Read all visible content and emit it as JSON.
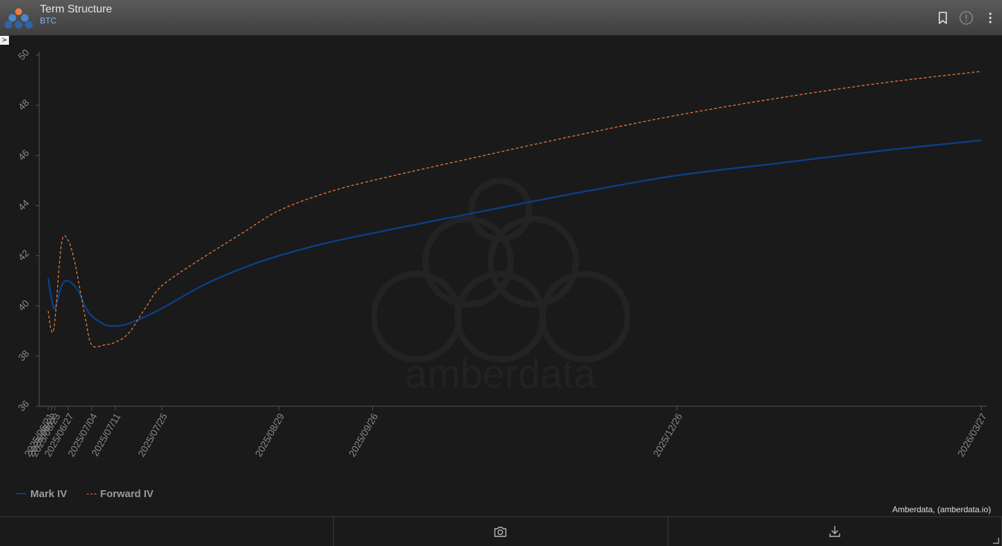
{
  "header": {
    "title": "Term Structure",
    "subtitle": "BTC",
    "icons": [
      "bookmark-icon",
      "info-icon",
      "more-vertical-icon"
    ]
  },
  "expander": {
    "label": ">"
  },
  "colors": {
    "mark_iv": "#0b3f8a",
    "forward_iv": "#f07a3a",
    "axis": "#555555",
    "tick_text": "#8a8a8a",
    "subtitle": "#7db3ff"
  },
  "legend": {
    "items": [
      {
        "label": "Mark IV",
        "style": "solid"
      },
      {
        "label": "Forward IV",
        "style": "dashed"
      }
    ]
  },
  "credit": "Amberdata, (amberdata.io)",
  "watermark_text": "amberdata",
  "footer": {
    "icons": [
      "",
      "camera-icon",
      "download-icon"
    ]
  },
  "chart_data": {
    "type": "line",
    "title": "",
    "xlabel": "",
    "ylabel": "",
    "ylim": [
      36,
      50
    ],
    "yticks": [
      36,
      38,
      40,
      42,
      44,
      46,
      48,
      50
    ],
    "x_type": "date",
    "xlim": [
      "2025/06/20",
      "2026/03/27"
    ],
    "x_ticks": [
      "2025/06/21",
      "2025/06/22",
      "2025/06/23",
      "2025/06/27",
      "2025/07/04",
      "2025/07/11",
      "2025/07/25",
      "2025/08/29",
      "2025/09/26",
      "2025/12/26",
      "2026/03/27"
    ],
    "x_tick_labels": [
      "2025/06/21",
      "2025/06/22",
      "2025/06/23",
      "2025/06/27",
      "2025/07/04",
      "2025/07/11",
      "2025/07/25",
      "2025/08/29",
      "2025/09/26",
      "2025/12/26",
      "2026/03/27"
    ],
    "grid": false,
    "legend_position": "bottom-left",
    "series": [
      {
        "name": "Mark IV",
        "style": "solid",
        "points": [
          [
            "2025/06/21",
            41.1
          ],
          [
            "2025/06/22",
            40.3
          ],
          [
            "2025/06/23",
            39.9
          ],
          [
            "2025/06/25",
            40.8
          ],
          [
            "2025/06/27",
            41.0
          ],
          [
            "2025/06/30",
            40.6
          ],
          [
            "2025/07/02",
            40.0
          ],
          [
            "2025/07/04",
            39.6
          ],
          [
            "2025/07/08",
            39.25
          ],
          [
            "2025/07/11",
            39.2
          ],
          [
            "2025/07/14",
            39.25
          ],
          [
            "2025/07/18",
            39.45
          ],
          [
            "2025/07/25",
            39.9
          ],
          [
            "2025/08/06",
            40.8
          ],
          [
            "2025/08/18",
            41.5
          ],
          [
            "2025/08/29",
            42.0
          ],
          [
            "2025/09/12",
            42.5
          ],
          [
            "2025/09/26",
            42.9
          ],
          [
            "2025/10/26",
            43.7
          ],
          [
            "2025/11/26",
            44.5
          ],
          [
            "2025/12/26",
            45.2
          ],
          [
            "2026/01/26",
            45.7
          ],
          [
            "2026/02/26",
            46.2
          ],
          [
            "2026/03/27",
            46.6
          ]
        ]
      },
      {
        "name": "Forward IV",
        "style": "dashed",
        "points": [
          [
            "2025/06/21",
            39.8
          ],
          [
            "2025/06/22",
            39.0
          ],
          [
            "2025/06/23",
            39.4
          ],
          [
            "2025/06/25",
            42.5
          ],
          [
            "2025/06/27",
            42.6
          ],
          [
            "2025/06/29",
            41.7
          ],
          [
            "2025/07/02",
            39.6
          ],
          [
            "2025/07/04",
            38.45
          ],
          [
            "2025/07/08",
            38.45
          ],
          [
            "2025/07/11",
            38.55
          ],
          [
            "2025/07/15",
            38.9
          ],
          [
            "2025/07/20",
            39.9
          ],
          [
            "2025/07/25",
            40.8
          ],
          [
            "2025/08/06",
            41.9
          ],
          [
            "2025/08/18",
            42.9
          ],
          [
            "2025/08/29",
            43.8
          ],
          [
            "2025/09/12",
            44.5
          ],
          [
            "2025/09/26",
            45.0
          ],
          [
            "2025/10/26",
            45.9
          ],
          [
            "2025/11/26",
            46.8
          ],
          [
            "2025/12/26",
            47.6
          ],
          [
            "2026/01/26",
            48.3
          ],
          [
            "2026/02/26",
            48.9
          ],
          [
            "2026/03/27",
            49.35
          ]
        ]
      }
    ]
  }
}
